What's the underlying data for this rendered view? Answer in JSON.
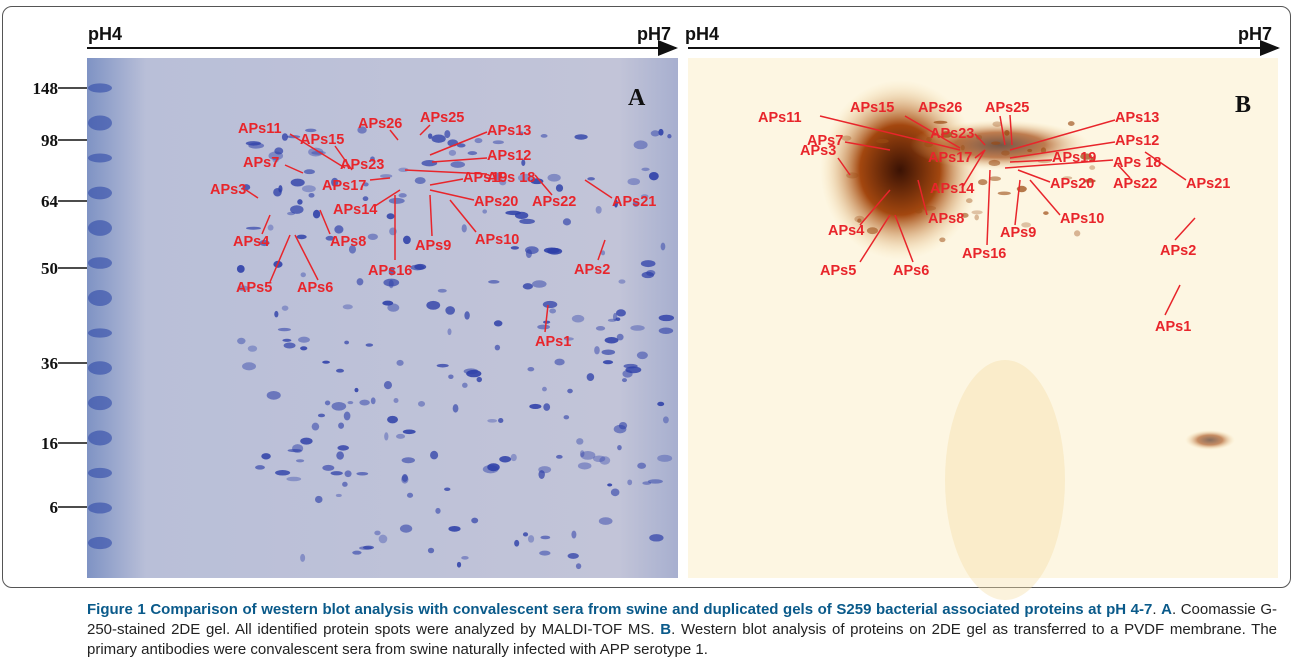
{
  "figure": {
    "panel_a": {
      "ph_left": "pH4",
      "ph_right": "pH7",
      "letter": "A",
      "mw_markers": [
        148,
        98,
        64,
        50,
        36,
        16,
        6
      ],
      "spot_labels": [
        "APs11",
        "APs15",
        "APs26",
        "APs25",
        "APs13",
        "APs7",
        "APs23",
        "APs12",
        "APs 18",
        "APs3",
        "APs17",
        "APs19",
        "APs14",
        "APs20",
        "APs22",
        "APs21",
        "APs8",
        "APs9",
        "APs10",
        "APs4",
        "APs16",
        "APs5",
        "APs6",
        "APs2",
        "APs1"
      ]
    },
    "panel_b": {
      "ph_left": "pH4",
      "ph_right": "pH7",
      "letter": "B",
      "spot_labels": [
        "APs11",
        "APs15",
        "APs26",
        "APs25",
        "APs13",
        "APs7",
        "APs23",
        "APs12",
        "APs 18",
        "APs3",
        "APs17",
        "APs19",
        "APs14",
        "APs20",
        "APs22",
        "APs21",
        "APs8",
        "APs9",
        "APs10",
        "APs4",
        "APs16",
        "APs5",
        "APs6",
        "APs2",
        "APs1"
      ]
    },
    "caption": {
      "segments": [
        {
          "text": "Figure 1 Comparison of western blot analysis with convalescent sera from swine and duplicated gels of S259 bacterial associated proteins at pH 4-7",
          "bold": true
        },
        {
          "text": ". ",
          "bold": false
        },
        {
          "text": "A",
          "bold": true
        },
        {
          "text": ". Coomassie G-250-stained 2DE gel. All identified protein spots were analyzed by MALDI-TOF MS. ",
          "bold": false
        },
        {
          "text": "B",
          "bold": true
        },
        {
          "text": ". Western blot analysis of proteins on 2DE gel as transferred to a PVDF membrane. The primary antibodies were convalescent sera from swine naturally infected with APP serotype 1.",
          "bold": false
        }
      ]
    }
  }
}
